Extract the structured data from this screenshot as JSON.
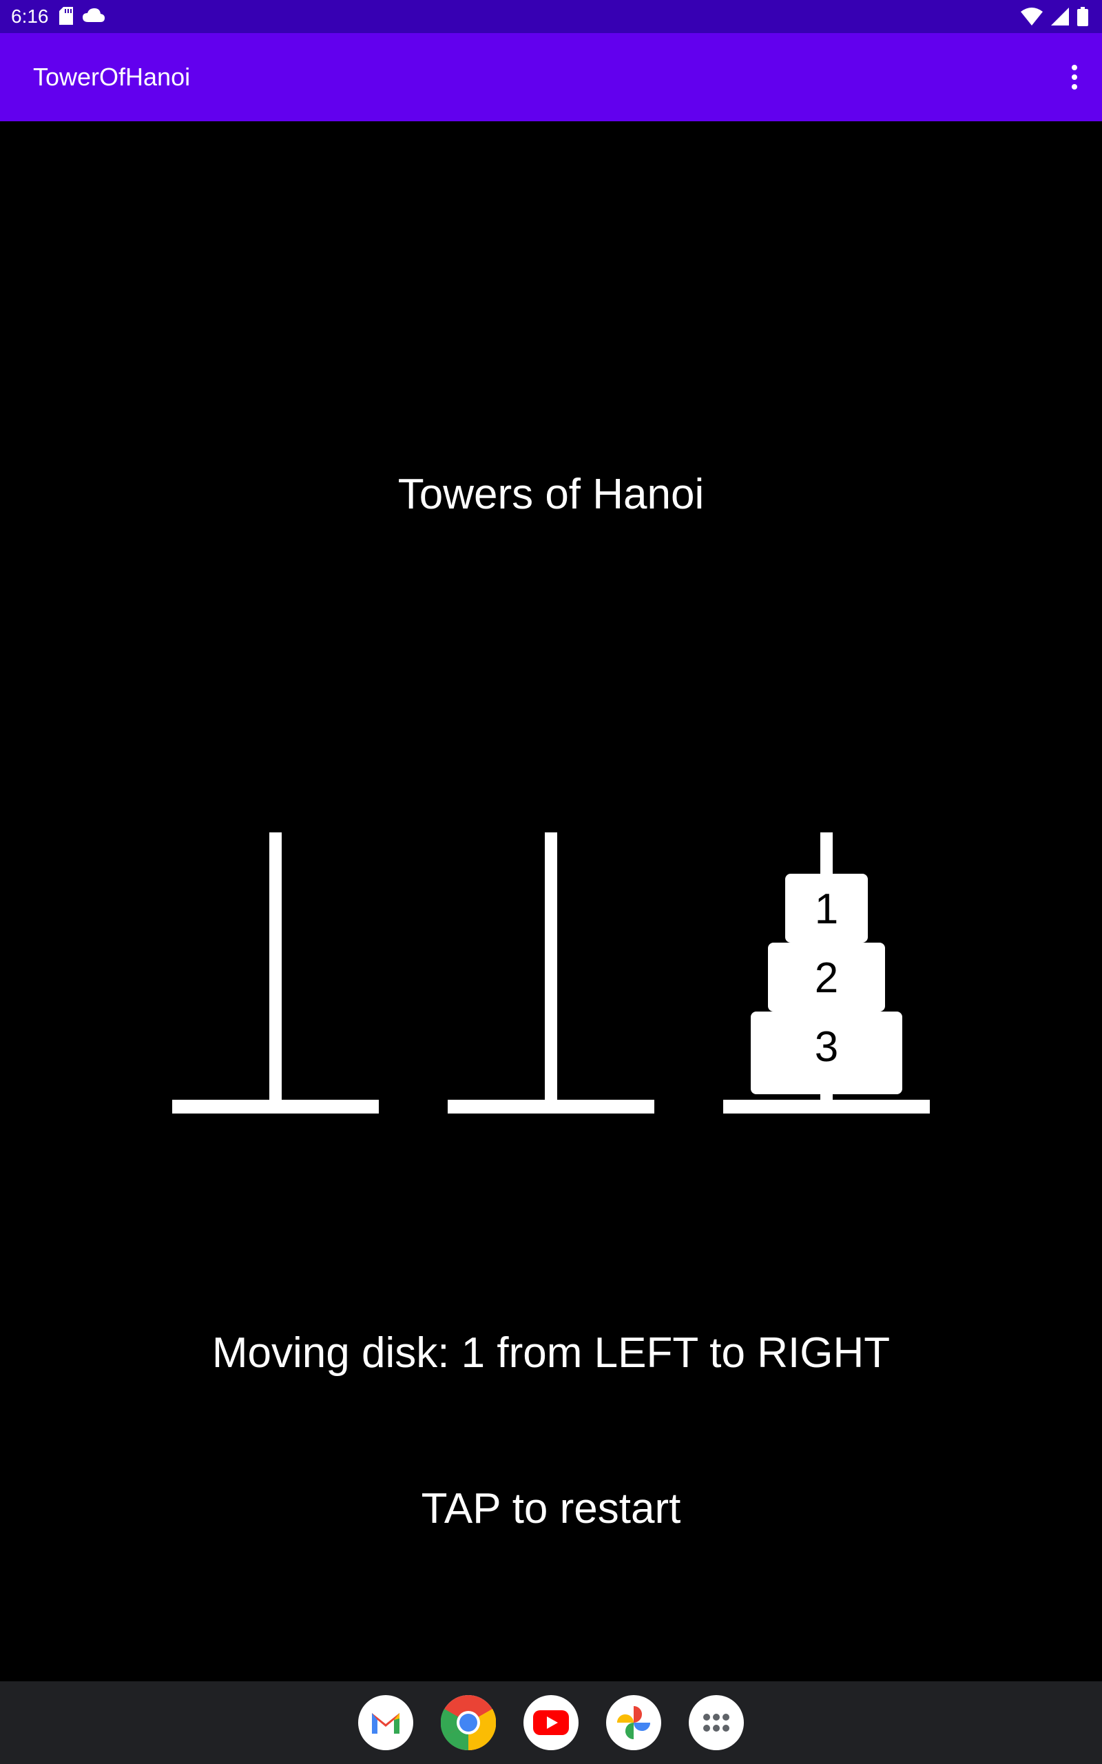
{
  "status_bar": {
    "time": "6:16",
    "left_icons": [
      "sd-card-icon",
      "cloud-icon"
    ],
    "right_icons": [
      "wifi-icon",
      "cellular-signal-icon",
      "battery-icon"
    ]
  },
  "app_bar": {
    "title": "TowerOfHanoi",
    "menu_icon": "overflow-menu-icon"
  },
  "game": {
    "title": "Towers of Hanoi",
    "pegs": [
      {
        "name": "LEFT",
        "disks": []
      },
      {
        "name": "MIDDLE",
        "disks": []
      },
      {
        "name": "RIGHT",
        "disks": [
          "3",
          "2",
          "1"
        ]
      }
    ],
    "status": "Moving disk: 1 from LEFT to RIGHT",
    "restart_hint": "TAP to restart"
  },
  "dock": {
    "apps": [
      "gmail-icon",
      "chrome-icon",
      "youtube-icon",
      "photos-icon",
      "app-drawer-icon"
    ]
  },
  "colors": {
    "status_bar": "#3700b3",
    "app_bar": "#6200ee",
    "background": "#000000",
    "foreground": "#ffffff",
    "dock": "#202124"
  }
}
